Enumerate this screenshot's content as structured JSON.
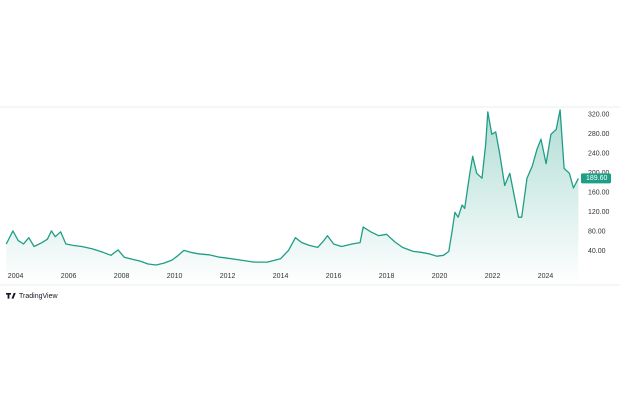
{
  "chart_data": {
    "type": "area",
    "x": [
      2003.65,
      2003.9,
      2004.1,
      2004.3,
      2004.5,
      2004.7,
      2005.0,
      2005.2,
      2005.35,
      2005.5,
      2005.7,
      2005.9,
      2006.2,
      2006.5,
      2006.9,
      2007.3,
      2007.6,
      2007.87,
      2008.1,
      2008.4,
      2008.7,
      2009.0,
      2009.3,
      2009.6,
      2009.9,
      2010.1,
      2010.35,
      2010.6,
      2010.9,
      2011.3,
      2011.7,
      2012.0,
      2012.5,
      2013.0,
      2013.5,
      2014.0,
      2014.3,
      2014.56,
      2014.8,
      2015.1,
      2015.4,
      2015.6,
      2015.77,
      2016.0,
      2016.3,
      2016.7,
      2017.0,
      2017.12,
      2017.4,
      2017.7,
      2018.0,
      2018.3,
      2018.6,
      2019.0,
      2019.3,
      2019.6,
      2019.9,
      2020.15,
      2020.35,
      2020.47,
      2020.58,
      2020.7,
      2020.85,
      2020.95,
      2021.14,
      2021.25,
      2021.4,
      2021.6,
      2021.74,
      2021.82,
      2021.97,
      2022.12,
      2022.27,
      2022.46,
      2022.65,
      2022.83,
      2022.98,
      2023.1,
      2023.3,
      2023.5,
      2023.68,
      2023.83,
      2024.02,
      2024.2,
      2024.4,
      2024.55,
      2024.7,
      2024.9,
      2025.05,
      2025.24
    ],
    "series": [
      {
        "color": "#1f9e86",
        "values": [
          55,
          82,
          62,
          55,
          68,
          50,
          58,
          65,
          82,
          70,
          80,
          55,
          52,
          50,
          45,
          38,
          32,
          43,
          28,
          24,
          20,
          14,
          12,
          16,
          22,
          30,
          42,
          38,
          35,
          33,
          28,
          26,
          22,
          18,
          18,
          25,
          42,
          68,
          58,
          52,
          48,
          60,
          72,
          55,
          50,
          55,
          58,
          90,
          80,
          72,
          75,
          60,
          48,
          40,
          38,
          35,
          30,
          32,
          40,
          80,
          120,
          110,
          135,
          128,
          200,
          235,
          200,
          190,
          260,
          326,
          280,
          285,
          240,
          175,
          200,
          150,
          110,
          110,
          190,
          215,
          250,
          270,
          220,
          280,
          290,
          330,
          210,
          200,
          170,
          189.6
        ]
      }
    ],
    "last_value": {
      "value": 189.6,
      "label": "189.60"
    },
    "xlim": [
      2003.6,
      2025.3
    ],
    "ylim": [
      -29,
      336
    ],
    "xticks": [
      2004,
      2006,
      2008,
      2010,
      2012,
      2014,
      2016,
      2018,
      2020,
      2022,
      2024
    ],
    "yticks": [
      {
        "value": 40,
        "label": "40.00"
      },
      {
        "value": 80,
        "label": "80.00"
      },
      {
        "value": 120,
        "label": "120.00"
      },
      {
        "value": 160,
        "label": "160.00"
      },
      {
        "value": 200,
        "label": "200.00"
      },
      {
        "value": 240,
        "label": "240.00"
      },
      {
        "value": 280,
        "label": "280.00"
      },
      {
        "value": 320,
        "label": "320.00"
      }
    ],
    "attribution": "TradingView"
  }
}
